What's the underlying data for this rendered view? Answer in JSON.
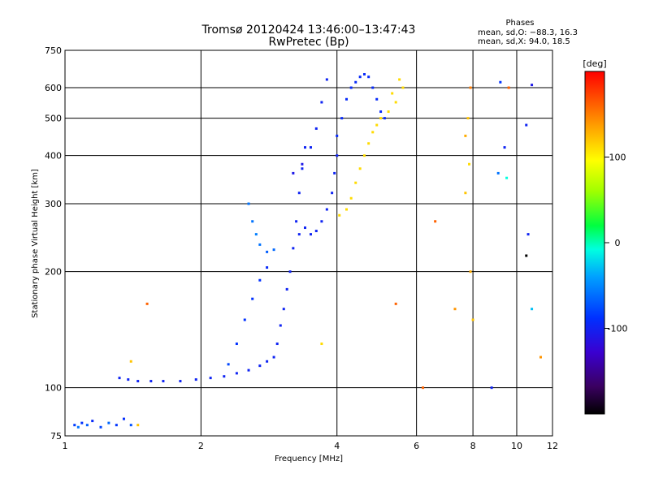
{
  "chart_data": {
    "type": "scatter",
    "title": "Tromsø 20120424 13:46:00–13:47:43",
    "subtitle": "RwPretec (Bp)",
    "xlabel": "Frequency [MHz]",
    "ylabel": "Stationary phase Virtual Height [km]",
    "x_scale": "log",
    "y_scale": "log",
    "xlim": [
      1,
      12
    ],
    "ylim": [
      75,
      750
    ],
    "x_ticks": [
      1,
      2,
      4,
      6,
      8,
      10,
      12
    ],
    "y_ticks": [
      75,
      100,
      200,
      300,
      400,
      500,
      600,
      750
    ],
    "grid": true,
    "phases_box": {
      "heading": "Phases",
      "line1": "mean, sd,O: −88.3, 16.3",
      "line2": "mean, sd,X:  94.0, 18.5"
    },
    "colorbar": {
      "label": "[deg]",
      "ticks": [
        100,
        0,
        -100
      ],
      "range": [
        -200,
        200
      ]
    },
    "series": [
      {
        "points": [
          [
            1.05,
            80,
            -85
          ],
          [
            1.07,
            79,
            -60
          ],
          [
            1.09,
            81,
            -90
          ],
          [
            1.12,
            80,
            -70
          ],
          [
            1.15,
            82,
            -95
          ],
          [
            1.2,
            79,
            -80
          ],
          [
            1.25,
            81,
            -65
          ],
          [
            1.3,
            80,
            -88
          ],
          [
            1.35,
            83,
            -92
          ],
          [
            1.4,
            80,
            -75
          ],
          [
            1.32,
            106,
            -100
          ],
          [
            1.38,
            105,
            -100
          ],
          [
            1.45,
            104,
            -100
          ],
          [
            1.55,
            104,
            -100
          ],
          [
            1.65,
            104,
            -100
          ],
          [
            1.8,
            104,
            -100
          ],
          [
            1.95,
            105,
            -100
          ],
          [
            2.1,
            106,
            -100
          ],
          [
            2.25,
            107,
            -100
          ],
          [
            2.4,
            109,
            -100
          ],
          [
            2.55,
            111,
            -100
          ],
          [
            2.7,
            114,
            -100
          ],
          [
            2.8,
            117,
            -100
          ],
          [
            2.9,
            120,
            -100
          ],
          [
            2.3,
            115,
            -80
          ],
          [
            2.4,
            130,
            -90
          ],
          [
            2.5,
            150,
            -90
          ],
          [
            2.6,
            170,
            -90
          ],
          [
            2.7,
            190,
            -90
          ],
          [
            2.8,
            205,
            -95
          ],
          [
            2.95,
            130,
            -100
          ],
          [
            3.0,
            145,
            -100
          ],
          [
            3.05,
            160,
            -100
          ],
          [
            3.1,
            180,
            -100
          ],
          [
            3.15,
            200,
            -100
          ],
          [
            3.2,
            230,
            -100
          ],
          [
            3.25,
            270,
            -100
          ],
          [
            3.3,
            320,
            -100
          ],
          [
            3.35,
            370,
            -100
          ],
          [
            3.4,
            420,
            -100
          ],
          [
            2.55,
            300,
            -60
          ],
          [
            2.6,
            270,
            -60
          ],
          [
            2.65,
            250,
            -55
          ],
          [
            2.7,
            235,
            -60
          ],
          [
            2.8,
            225,
            -70
          ],
          [
            2.9,
            228,
            -65
          ],
          [
            3.3,
            250,
            -100
          ],
          [
            3.4,
            260,
            -100
          ],
          [
            3.5,
            250,
            -100
          ],
          [
            3.6,
            255,
            -100
          ],
          [
            3.7,
            270,
            -100
          ],
          [
            3.8,
            290,
            -100
          ],
          [
            3.9,
            320,
            -100
          ],
          [
            3.95,
            360,
            -100
          ],
          [
            4.0,
            400,
            -100
          ],
          [
            3.2,
            360,
            -110
          ],
          [
            3.35,
            380,
            -110
          ],
          [
            3.5,
            420,
            -100
          ],
          [
            3.6,
            470,
            -100
          ],
          [
            3.7,
            550,
            -100
          ],
          [
            3.8,
            630,
            -100
          ],
          [
            4.0,
            450,
            -95
          ],
          [
            4.1,
            500,
            -95
          ],
          [
            4.2,
            560,
            -95
          ],
          [
            4.3,
            600,
            -95
          ],
          [
            4.4,
            620,
            -95
          ],
          [
            4.5,
            640,
            -95
          ],
          [
            4.6,
            650,
            -95
          ],
          [
            4.7,
            640,
            -95
          ],
          [
            4.8,
            600,
            -95
          ],
          [
            4.9,
            560,
            -95
          ],
          [
            5.0,
            520,
            -95
          ],
          [
            5.1,
            500,
            -95
          ],
          [
            4.05,
            280,
            110
          ],
          [
            4.2,
            290,
            110
          ],
          [
            4.3,
            310,
            110
          ],
          [
            4.4,
            340,
            110
          ],
          [
            4.5,
            370,
            110
          ],
          [
            4.6,
            400,
            110
          ],
          [
            4.7,
            430,
            110
          ],
          [
            4.8,
            460,
            110
          ],
          [
            4.9,
            480,
            110
          ],
          [
            5.0,
            500,
            110
          ],
          [
            5.2,
            520,
            110
          ],
          [
            5.4,
            550,
            110
          ],
          [
            5.6,
            600,
            110
          ],
          [
            5.5,
            630,
            110
          ],
          [
            5.3,
            580,
            110
          ],
          [
            1.52,
            165,
            160
          ],
          [
            1.4,
            117,
            120
          ],
          [
            1.45,
            80,
            120
          ],
          [
            3.7,
            130,
            110
          ],
          [
            5.4,
            165,
            160
          ],
          [
            6.2,
            100,
            160
          ],
          [
            6.6,
            270,
            160
          ],
          [
            7.3,
            160,
            140
          ],
          [
            7.7,
            320,
            120
          ],
          [
            7.7,
            450,
            130
          ],
          [
            7.8,
            500,
            120
          ],
          [
            7.85,
            380,
            110
          ],
          [
            7.9,
            200,
            130
          ],
          [
            8.0,
            150,
            120
          ],
          [
            7.9,
            600,
            150
          ],
          [
            9.2,
            620,
            -90
          ],
          [
            9.6,
            600,
            160
          ],
          [
            10.5,
            480,
            -100
          ],
          [
            10.8,
            610,
            -110
          ],
          [
            10.6,
            250,
            -100
          ],
          [
            10.5,
            220,
            -200
          ],
          [
            11.3,
            120,
            140
          ],
          [
            10.8,
            160,
            -30
          ],
          [
            9.4,
            420,
            -100
          ],
          [
            8.8,
            100,
            -100
          ],
          [
            9.5,
            350,
            -10
          ],
          [
            9.1,
            360,
            -60
          ]
        ]
      }
    ]
  }
}
